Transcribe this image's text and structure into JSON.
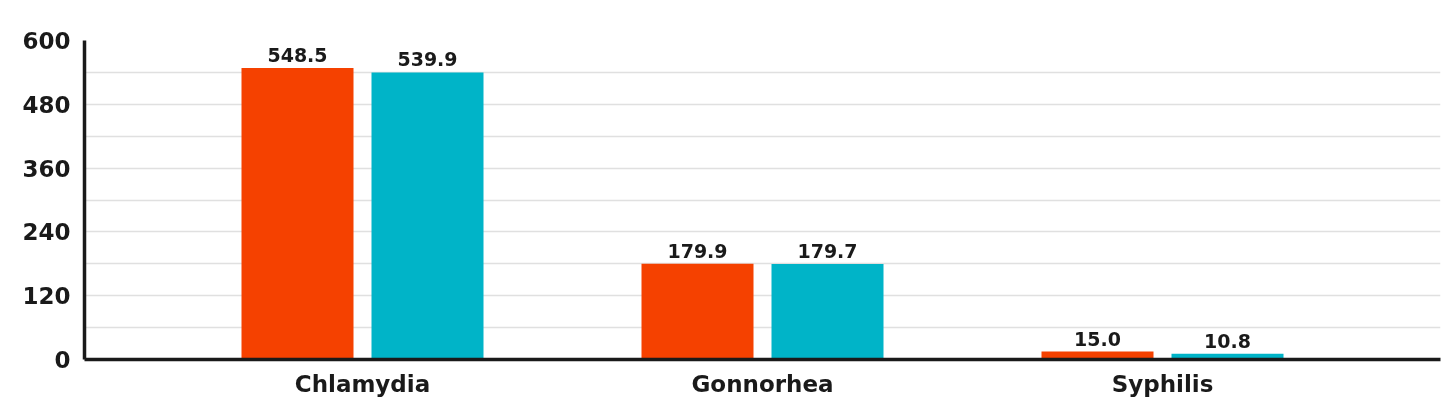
{
  "chart_data": {
    "type": "bar",
    "categories": [
      "Chlamydia",
      "Gonnorhea",
      "Syphilis"
    ],
    "series": [
      {
        "color": "#f54100",
        "values": [
          548.5,
          179.9,
          15.0
        ],
        "value_labels": [
          "548.5",
          "179.9",
          "15.0"
        ]
      },
      {
        "color": "#00b4c8",
        "values": [
          539.9,
          179.7,
          10.8
        ],
        "value_labels": [
          "539.9",
          "179.7",
          "10.8"
        ]
      }
    ],
    "ylim": [
      0,
      600
    ],
    "yticks": [
      0,
      {
        "value": 60,
        "label": null
      },
      120,
      {
        "value": 180,
        "label": null
      },
      240,
      {
        "value": 300,
        "label": null
      },
      360,
      {
        "value": 420,
        "label": null
      },
      480,
      {
        "value": 540,
        "label": null
      },
      600
    ],
    "grid": "y"
  }
}
